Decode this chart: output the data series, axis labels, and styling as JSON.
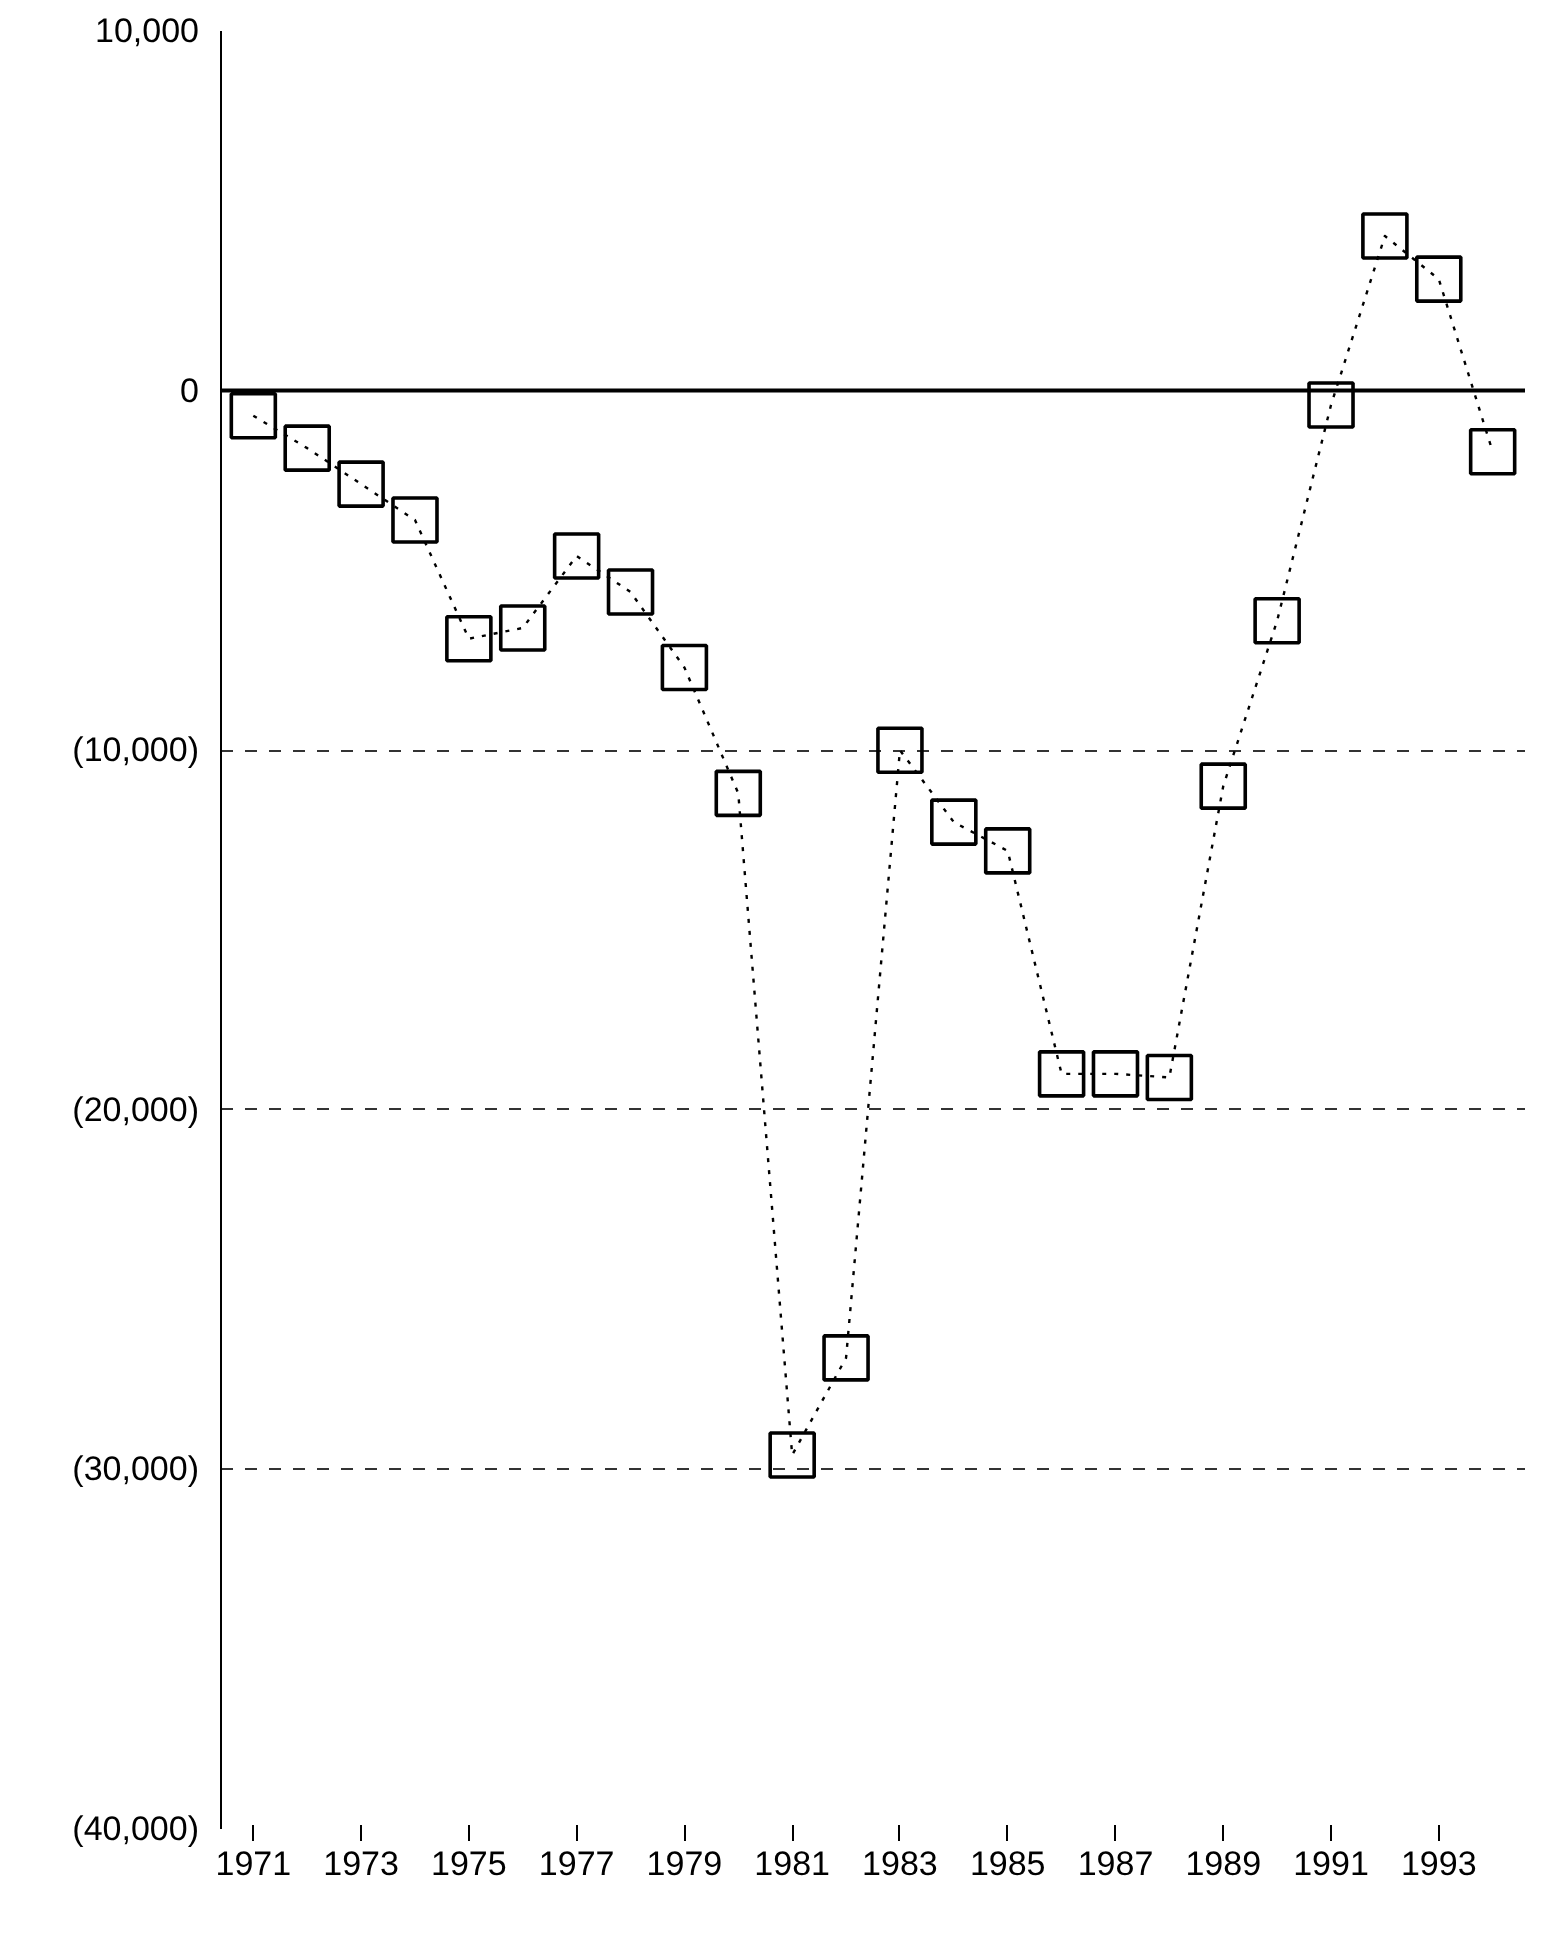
{
  "chart_data": {
    "type": "line",
    "x": [
      1971,
      1972,
      1973,
      1974,
      1975,
      1976,
      1977,
      1978,
      1979,
      1980,
      1981,
      1982,
      1983,
      1984,
      1985,
      1986,
      1987,
      1988,
      1989,
      1990,
      1991,
      1992,
      1993,
      1994
    ],
    "series": [
      {
        "color": "#000000",
        "values": [
          -700,
          -1600,
          -2600,
          -3600,
          -6900,
          -6600,
          -4600,
          -5600,
          -7700,
          -11200,
          -29600,
          -26900,
          -10000,
          -12000,
          -12800,
          -19000,
          -19000,
          -19100,
          -11000,
          -6400,
          -400,
          4300,
          3100,
          -1700
        ]
      }
    ],
    "xlim": [
      1970.4,
      1994.6
    ],
    "xticks": [
      1971,
      1973,
      1975,
      1977,
      1979,
      1981,
      1983,
      1985,
      1987,
      1989,
      1991,
      1993
    ],
    "ylim": [
      -40000,
      10000
    ],
    "yticks": [
      {
        "value": 10000,
        "label": "10,000"
      },
      0,
      {
        "value": -10000,
        "label": "(10,000)"
      },
      {
        "value": -20000,
        "label": "(20,000)"
      },
      {
        "value": -30000,
        "label": "(30,000)"
      },
      {
        "value": -40000,
        "label": "(40,000)"
      }
    ],
    "ref_lines": [
      {
        "axis": "y",
        "value": 0,
        "line_style": "solid"
      }
    ],
    "grid": "y",
    "marker": "square",
    "line_style": "dotted"
  }
}
